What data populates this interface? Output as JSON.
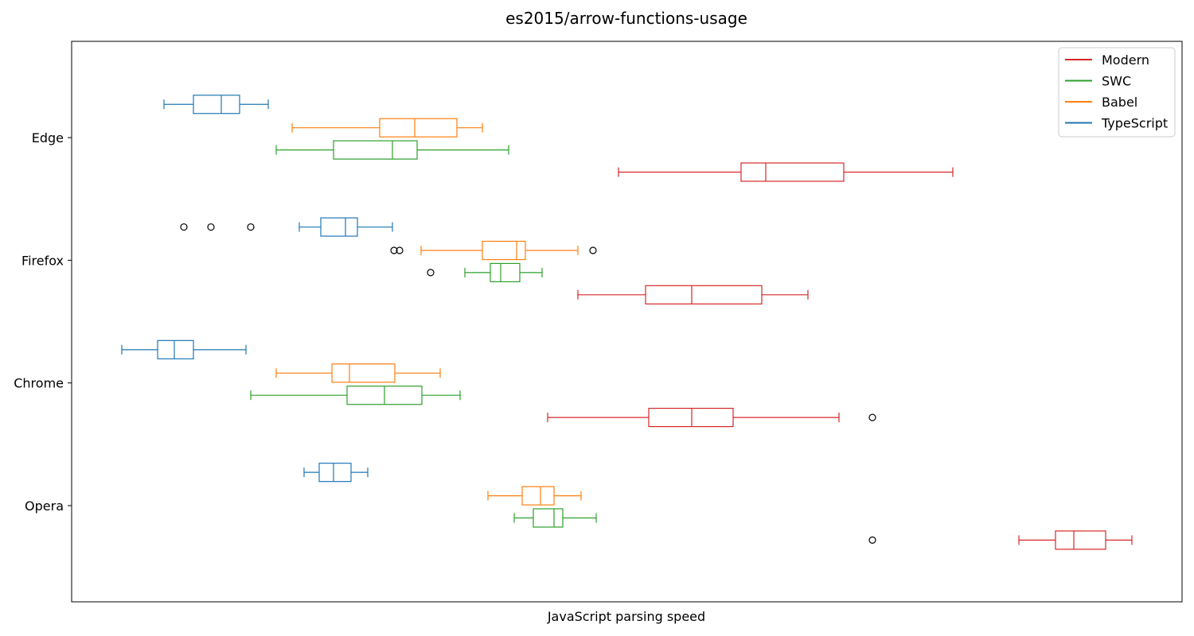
{
  "chart_data": {
    "type": "boxplot",
    "orientation": "horizontal",
    "title": "es2015/arrow-functions-usage",
    "xlabel": "JavaScript parsing speed",
    "ylabel": "",
    "x_ticks_shown": false,
    "xlim": [
      0,
      1395
    ],
    "grid": false,
    "legend_position": "top-right",
    "categories": [
      "Opera",
      "Chrome",
      "Firefox",
      "Edge"
    ],
    "series": [
      {
        "name": "Modern",
        "color": "#d62728",
        "boxes": [
          {
            "category": "Opera",
            "whislo": 1190,
            "q1": 1236,
            "median": 1259,
            "q3": 1299,
            "whishi": 1332,
            "fliers": [
              1006
            ]
          },
          {
            "category": "Chrome",
            "whislo": 598,
            "q1": 725,
            "median": 779,
            "q3": 831,
            "whishi": 964,
            "fliers": [
              1006
            ]
          },
          {
            "category": "Firefox",
            "whislo": 636,
            "q1": 721,
            "median": 779,
            "q3": 867,
            "whishi": 925,
            "fliers": []
          },
          {
            "category": "Edge",
            "whislo": 687,
            "q1": 841,
            "median": 872,
            "q3": 970,
            "whishi": 1107,
            "fliers": []
          }
        ]
      },
      {
        "name": "SWC",
        "color": "#2ca02c",
        "boxes": [
          {
            "category": "Opera",
            "whislo": 556,
            "q1": 580,
            "median": 606,
            "q3": 617,
            "whishi": 659,
            "fliers": []
          },
          {
            "category": "Chrome",
            "whislo": 225,
            "q1": 346,
            "median": 393,
            "q3": 440,
            "whishi": 488,
            "fliers": []
          },
          {
            "category": "Firefox",
            "whislo": 494,
            "q1": 526,
            "median": 539,
            "q3": 563,
            "whishi": 591,
            "fliers": [
              451
            ]
          },
          {
            "category": "Edge",
            "whislo": 257,
            "q1": 329,
            "median": 403,
            "q3": 434,
            "whishi": 549,
            "fliers": []
          }
        ]
      },
      {
        "name": "Babel",
        "color": "#ff7f0e",
        "boxes": [
          {
            "category": "Opera",
            "whislo": 523,
            "q1": 566,
            "median": 589,
            "q3": 606,
            "whishi": 640,
            "fliers": []
          },
          {
            "category": "Chrome",
            "whislo": 257,
            "q1": 327,
            "median": 349,
            "q3": 406,
            "whishi": 463,
            "fliers": []
          },
          {
            "category": "Firefox",
            "whislo": 439,
            "q1": 516,
            "median": 559,
            "q3": 570,
            "whishi": 636,
            "fliers": [
              405,
              412,
              655
            ]
          },
          {
            "category": "Edge",
            "whislo": 277,
            "q1": 387,
            "median": 431,
            "q3": 484,
            "whishi": 516,
            "fliers": []
          }
        ]
      },
      {
        "name": "TypeScript",
        "color": "#1f77b4",
        "boxes": [
          {
            "category": "Opera",
            "whislo": 292,
            "q1": 311,
            "median": 329,
            "q3": 351,
            "whishi": 372,
            "fliers": []
          },
          {
            "category": "Chrome",
            "whislo": 63,
            "q1": 108,
            "median": 129,
            "q3": 153,
            "whishi": 219,
            "fliers": []
          },
          {
            "category": "Firefox",
            "whislo": 286,
            "q1": 313,
            "median": 344,
            "q3": 359,
            "whishi": 403,
            "fliers": [
              141,
              175,
              225
            ]
          },
          {
            "category": "Edge",
            "whislo": 116,
            "q1": 153,
            "median": 188,
            "q3": 211,
            "whishi": 247,
            "fliers": []
          }
        ]
      }
    ]
  }
}
